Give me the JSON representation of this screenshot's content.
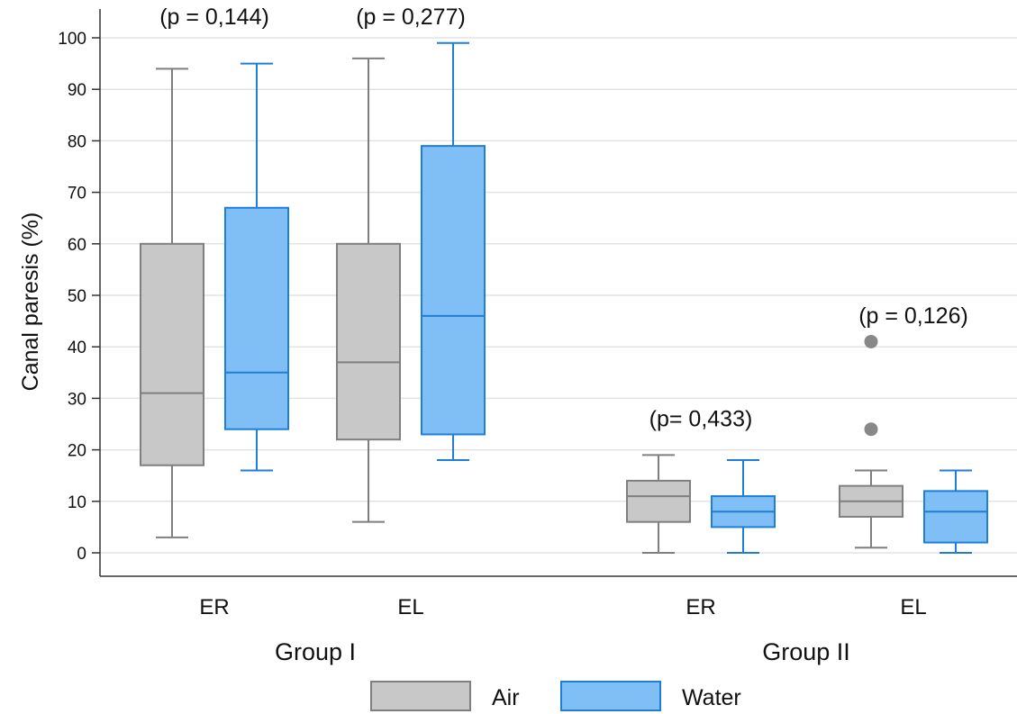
{
  "chart_data": {
    "type": "box",
    "ylabel": "Canal paresis (%)",
    "ylim": [
      0,
      100
    ],
    "yticks": [
      0,
      10,
      20,
      30,
      40,
      50,
      60,
      70,
      80,
      90,
      100
    ],
    "grid": true,
    "groups": [
      {
        "label": "Group I",
        "categories": [
          "ER",
          "EL"
        ]
      },
      {
        "label": "Group II",
        "categories": [
          "ER",
          "EL"
        ]
      }
    ],
    "series": [
      {
        "name": "Air",
        "color": "#c8c8c8",
        "stroke": "#7f7f7f",
        "boxes": [
          {
            "whisker_low": 3,
            "q1": 17,
            "median": 31,
            "q3": 60,
            "whisker_high": 94,
            "outliers": []
          },
          {
            "whisker_low": 6,
            "q1": 22,
            "median": 37,
            "q3": 60,
            "whisker_high": 96,
            "outliers": []
          },
          {
            "whisker_low": 0,
            "q1": 6,
            "median": 11,
            "q3": 14,
            "whisker_high": 19,
            "outliers": []
          },
          {
            "whisker_low": 1,
            "q1": 7,
            "median": 10,
            "q3": 13,
            "whisker_high": 16,
            "outliers": [
              24,
              41
            ]
          }
        ]
      },
      {
        "name": "Water",
        "color": "#7fbff5",
        "stroke": "#1f7fd6",
        "boxes": [
          {
            "whisker_low": 16,
            "q1": 24,
            "median": 35,
            "q3": 67,
            "whisker_high": 95,
            "outliers": []
          },
          {
            "whisker_low": 18,
            "q1": 23,
            "median": 46,
            "q3": 79,
            "whisker_high": 99,
            "outliers": []
          },
          {
            "whisker_low": 0,
            "q1": 5,
            "median": 8,
            "q3": 11,
            "whisker_high": 18,
            "outliers": []
          },
          {
            "whisker_low": 0,
            "q1": 2,
            "median": 8,
            "q3": 12,
            "whisker_high": 16,
            "outliers": []
          }
        ]
      }
    ],
    "annotations": [
      {
        "text": "(p = 0,144)",
        "category_index": 0,
        "y": 104
      },
      {
        "text": "(p = 0,277)",
        "category_index": 1,
        "y": 104
      },
      {
        "text": "(p= 0,433)",
        "category_index": 2,
        "y": 26
      },
      {
        "text": "(p = 0,126)",
        "category_index": 3,
        "y": 46
      }
    ],
    "legend": {
      "position": "bottom",
      "entries": [
        "Air",
        "Water"
      ]
    }
  }
}
